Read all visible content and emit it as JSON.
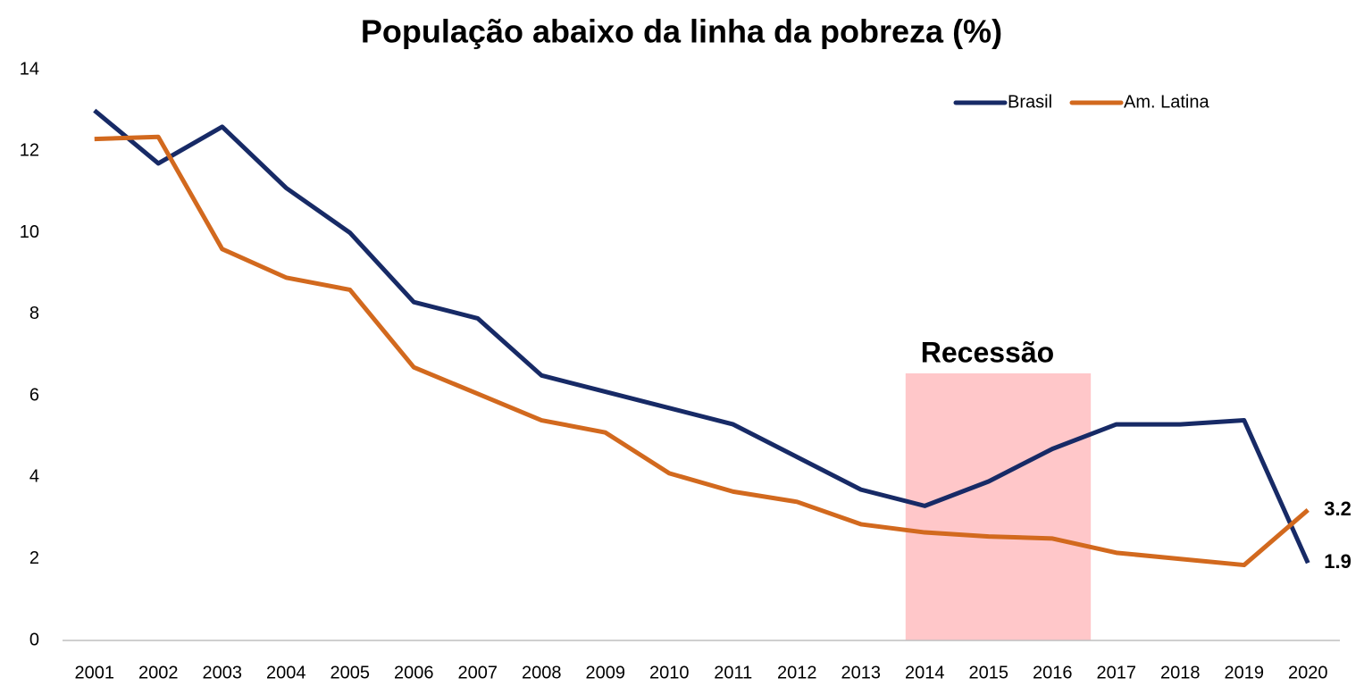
{
  "chart_data": {
    "type": "line",
    "title": "População abaixo da linha da pobreza (%)",
    "categories": [
      "2001",
      "2002",
      "2003",
      "2004",
      "2005",
      "2006",
      "2007",
      "2008",
      "2009",
      "2010",
      "2011",
      "2012",
      "2013",
      "2014",
      "2015",
      "2016",
      "2017",
      "2018",
      "2019",
      "2020"
    ],
    "series": [
      {
        "name": "Brasil",
        "color": "#172a66",
        "values": [
          13.0,
          11.7,
          12.6,
          11.1,
          10.0,
          8.3,
          7.9,
          6.5,
          6.1,
          5.7,
          5.3,
          4.5,
          3.7,
          3.3,
          3.9,
          4.7,
          5.3,
          5.3,
          5.4,
          1.9
        ]
      },
      {
        "name": "Am. Latina",
        "color": "#d2691e",
        "values": [
          12.3,
          12.35,
          9.6,
          8.9,
          8.6,
          6.7,
          6.05,
          5.4,
          5.1,
          4.1,
          3.65,
          3.4,
          2.85,
          2.65,
          2.55,
          2.5,
          2.15,
          2.0,
          1.85,
          3.2
        ]
      }
    ],
    "ylim": [
      0,
      14
    ],
    "yticks": [
      0,
      2,
      4,
      6,
      8,
      10,
      12,
      14
    ],
    "grid": false,
    "legend": "top-right",
    "shaded_region": {
      "label": "Recessão",
      "start": "2014",
      "end": "2016",
      "color": "#ffc7c9",
      "label_color": "#ff0000"
    }
  }
}
